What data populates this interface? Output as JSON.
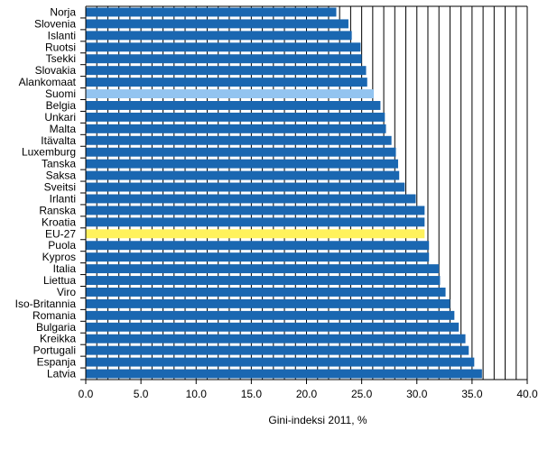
{
  "chart_data": {
    "type": "bar",
    "orientation": "horizontal",
    "title": "",
    "xlabel": "Gini-indeksi 2011, %",
    "ylabel": "",
    "xlim": [
      0,
      40
    ],
    "x_ticks": [
      "0.0",
      "5.0",
      "10.0",
      "15.0",
      "20.0",
      "25.0",
      "30.0",
      "35.0",
      "40.0"
    ],
    "grid": "vertical lines every 1.0",
    "legend": "none",
    "categories": [
      "Norja",
      "Slovenia",
      "Islanti",
      "Ruotsi",
      "Tsekki",
      "Slovakia",
      "Alankomaat",
      "Suomi",
      "Belgia",
      "Unkari",
      "Malta",
      "Itävalta",
      "Luxemburg",
      "Tanska",
      "Saksa",
      "Sveitsi",
      "Irlanti",
      "Ranska",
      "Kroatia",
      "EU-27",
      "Puola",
      "Kypros",
      "Italia",
      "Liettua",
      "Viro",
      "Iso-Britannia",
      "Romania",
      "Bulgaria",
      "Kreikka",
      "Portugali",
      "Espanja",
      "Latvia"
    ],
    "values": [
      22.7,
      23.8,
      24.1,
      24.9,
      25.0,
      25.4,
      25.5,
      26.1,
      26.7,
      27.1,
      27.2,
      27.7,
      28.1,
      28.3,
      28.4,
      28.9,
      29.9,
      30.7,
      30.7,
      30.7,
      31.1,
      31.1,
      32.0,
      32.1,
      32.6,
      33.0,
      33.4,
      33.8,
      34.4,
      34.7,
      35.2,
      35.9
    ],
    "colors": {
      "default": "#1a67b1",
      "highlight_suomi": "#93c4f0",
      "highlight_eu27": "#fff25c"
    },
    "highlight": {
      "Suomi": "highlight_suomi",
      "EU-27": "highlight_eu27"
    }
  }
}
